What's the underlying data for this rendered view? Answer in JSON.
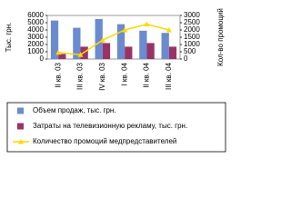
{
  "chart_data": {
    "type": "bar",
    "categories": [
      "II кв. 03",
      "III кв. 03",
      "IV кв. 03",
      "I кв. 04",
      "II кв. 04",
      "III кв. 04"
    ],
    "ylabel": "Тыс. грн.",
    "y2label": "Кол-во промоций",
    "ylim": [
      0,
      6000
    ],
    "yticks": [
      0,
      1000,
      2000,
      3000,
      4000,
      5000,
      6000
    ],
    "y2lim": [
      0,
      3000
    ],
    "y2ticks": [
      0,
      500,
      1000,
      1500,
      2000,
      2500,
      3000
    ],
    "series": [
      {
        "name": "Объем продаж, тыс. грн.",
        "color": "#6a8bd0",
        "values": [
          5300,
          4300,
          5500,
          4800,
          3900,
          3600
        ]
      },
      {
        "name": "Затраты на телевизионную рекламу, тыс. грн.",
        "color": "#993366",
        "values": [
          700,
          1700,
          2200,
          1700,
          2200,
          1700
        ]
      },
      {
        "name": "Количество промоций медпредставителей",
        "color": "#ffd800",
        "type": "line",
        "axis": "y2",
        "values": [
          450,
          300,
          1300,
          2000,
          2400,
          2000
        ]
      }
    ]
  }
}
